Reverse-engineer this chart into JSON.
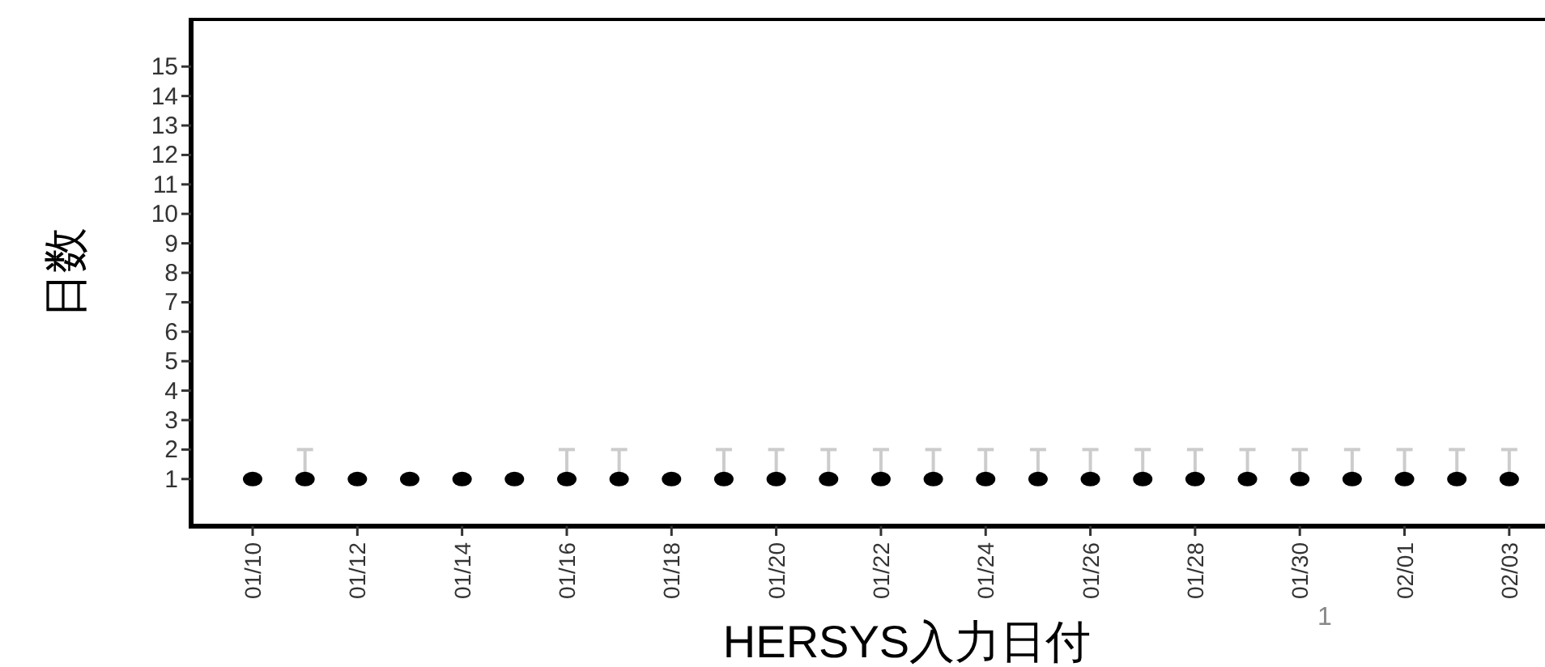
{
  "chart_data": {
    "type": "scatter",
    "xlabel": "HERSYS入力日付",
    "ylabel": "日数",
    "categories": [
      "01/10",
      null,
      "01/12",
      null,
      "01/14",
      null,
      "01/16",
      null,
      "01/18",
      null,
      "01/20",
      null,
      "01/22",
      null,
      "01/24",
      null,
      "01/26",
      null,
      "01/28",
      null,
      "01/30",
      null,
      "02/01",
      null,
      "02/03"
    ],
    "values": [
      1,
      1,
      1,
      1,
      1,
      1,
      1,
      1,
      1,
      1,
      1,
      1,
      1,
      1,
      1,
      1,
      1,
      1,
      1,
      1,
      1,
      1,
      1,
      1,
      1
    ],
    "errors": [
      null,
      [
        1,
        2
      ],
      null,
      null,
      null,
      null,
      [
        1,
        2
      ],
      [
        1,
        2
      ],
      null,
      [
        1,
        2
      ],
      [
        1,
        2
      ],
      [
        1,
        2
      ],
      [
        1,
        2
      ],
      [
        1,
        2
      ],
      [
        1,
        2
      ],
      [
        1,
        2
      ],
      [
        1,
        2
      ],
      [
        1,
        2
      ],
      [
        1,
        2
      ],
      [
        1,
        2
      ],
      [
        1,
        2
      ],
      [
        1,
        2
      ],
      [
        1,
        2
      ],
      [
        1,
        2
      ],
      [
        1,
        2
      ]
    ],
    "color": "#000000",
    "marker": "circle",
    "ylim": [
      -0.6,
      16.6
    ],
    "yticks": [
      1,
      2,
      3,
      4,
      5,
      6,
      7,
      8,
      9,
      10,
      11,
      12,
      13,
      14,
      15
    ],
    "annotations": [
      "1"
    ]
  }
}
